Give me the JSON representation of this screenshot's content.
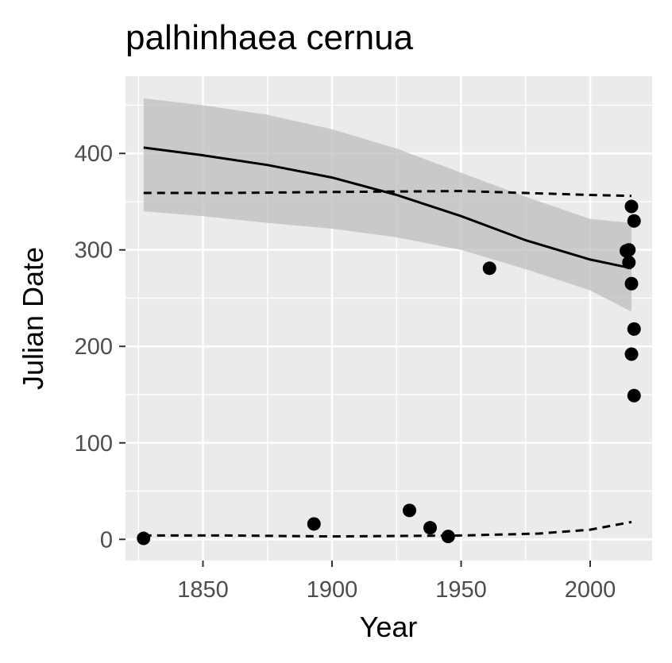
{
  "chart_data": {
    "type": "scatter",
    "title": "palhinhaea cernua",
    "xlabel": "Year",
    "ylabel": "Julian Date",
    "xlim": [
      1820,
      2024
    ],
    "ylim": [
      -22,
      480
    ],
    "x_ticks": [
      1850,
      1900,
      1950,
      2000
    ],
    "y_ticks": [
      0,
      100,
      200,
      300,
      400
    ],
    "grid": true,
    "legend": "none",
    "colors": {
      "panel": "#ebebeb",
      "grid": "#ffffff",
      "points": "#000000",
      "ribbon": "#bdbdbd",
      "tick_label": "#4d4d4d"
    },
    "series": [
      {
        "kind": "points",
        "x": [
          1827,
          1893,
          1930,
          1938,
          1945,
          1961,
          2014,
          2015,
          2015,
          2016,
          2016,
          2017,
          2017,
          2016,
          2017
        ],
        "y": [
          1,
          16,
          30,
          12,
          3,
          281,
          299,
          300,
          287,
          345,
          265,
          330,
          218,
          192,
          149
        ]
      },
      {
        "kind": "fit-line",
        "x": [
          1827,
          1850,
          1875,
          1900,
          1925,
          1950,
          1975,
          2000,
          2016
        ],
        "y": [
          406,
          398,
          388,
          375,
          357,
          335,
          310,
          290,
          281
        ]
      },
      {
        "kind": "confidence-band",
        "x": [
          1827,
          1850,
          1875,
          1900,
          1925,
          1950,
          1975,
          2000,
          2016
        ],
        "upper": [
          457,
          450,
          440,
          425,
          405,
          380,
          355,
          332,
          328
        ],
        "lower": [
          340,
          335,
          328,
          322,
          313,
          300,
          280,
          258,
          236
        ]
      },
      {
        "kind": "dashed-upper",
        "x": [
          1827,
          1860,
          1900,
          1950,
          2000,
          2016
        ],
        "y": [
          359,
          359,
          360,
          361,
          357,
          356
        ]
      },
      {
        "kind": "dashed-lower",
        "x": [
          1827,
          1860,
          1900,
          1950,
          1980,
          2000,
          2016
        ],
        "y": [
          4,
          4,
          3,
          4,
          6,
          10,
          18
        ]
      }
    ]
  }
}
